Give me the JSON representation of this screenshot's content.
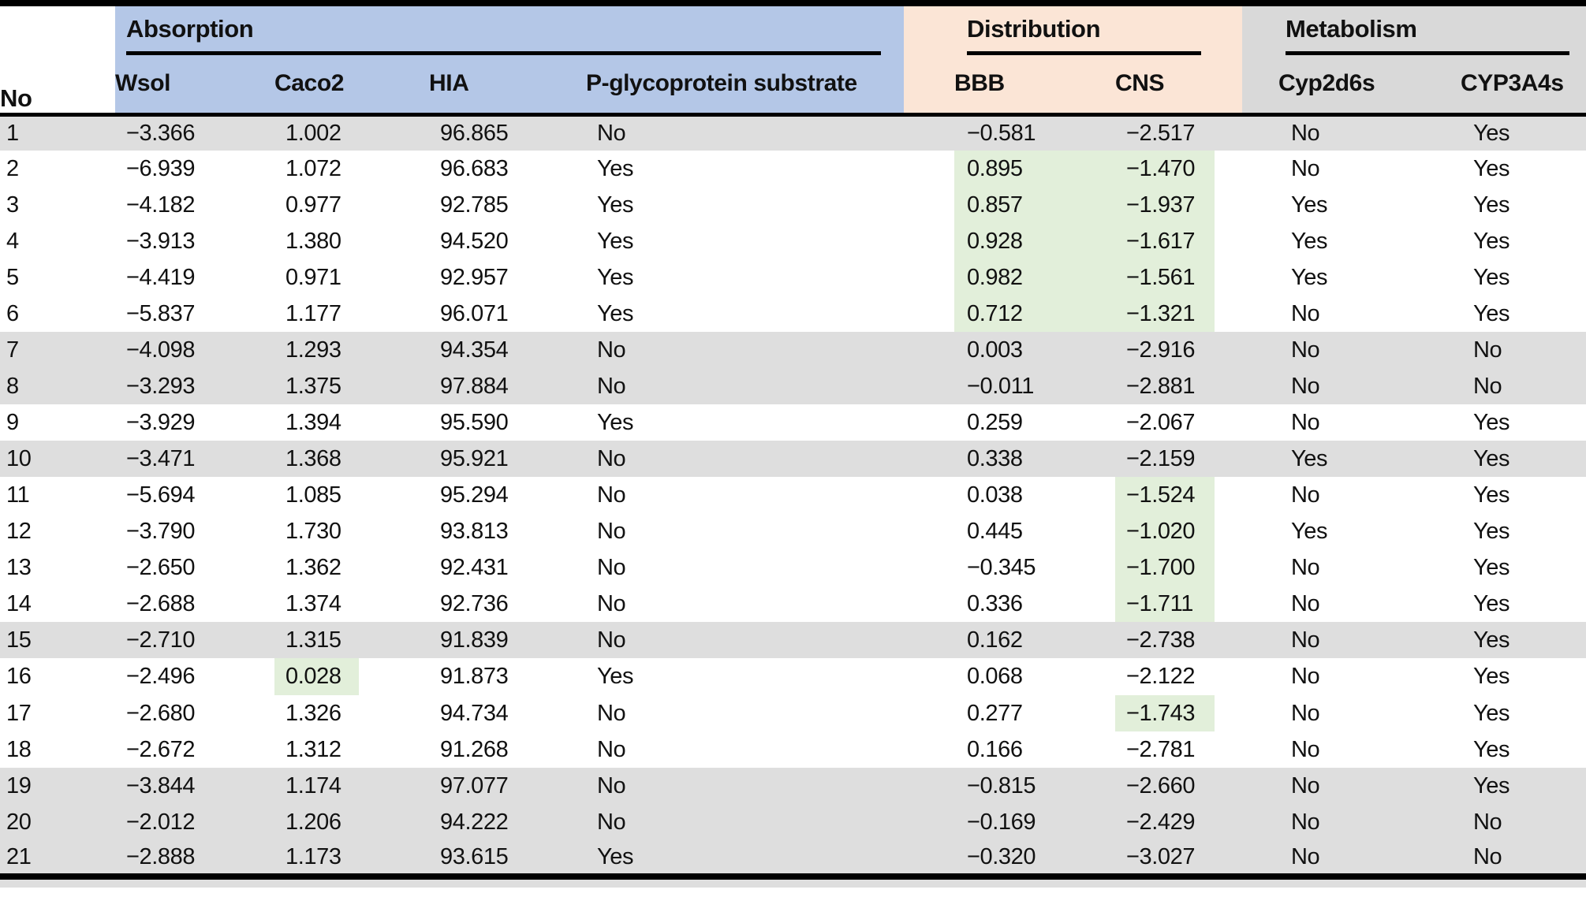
{
  "colors": {
    "absorption_bg": "#b4c7e7",
    "distribution_bg": "#fbe5d6",
    "metabolism_bg": "#d9d9d9",
    "row_shade": "#dedede",
    "highlight": "#e2efda"
  },
  "table": {
    "group_headers": [
      {
        "label": "Absorption"
      },
      {
        "label": "Distribution"
      },
      {
        "label": "Metabolism"
      }
    ],
    "column_headers": {
      "no": "No",
      "wsol": "Wsol",
      "caco2": "Caco2",
      "hia": "HIA",
      "pgp": "P-glycoprotein substrate",
      "bbb": "BBB",
      "cns": "CNS",
      "cyp2d6s": "Cyp2d6s",
      "cyp3a4s": "CYP3A4s"
    },
    "rows": [
      {
        "no": "1",
        "wsol": "−3.366",
        "caco2": "1.002",
        "hia": "96.865",
        "pgp": "No",
        "bbb": "−0.581",
        "cns": "−2.517",
        "cyp2d6s": "No",
        "cyp3a4s": "Yes",
        "shaded": true,
        "highlighted": []
      },
      {
        "no": "2",
        "wsol": "−6.939",
        "caco2": "1.072",
        "hia": "96.683",
        "pgp": "Yes",
        "bbb": "0.895",
        "cns": "−1.470",
        "cyp2d6s": "No",
        "cyp3a4s": "Yes",
        "shaded": false,
        "highlighted": [
          "bbb",
          "cns"
        ]
      },
      {
        "no": "3",
        "wsol": "−4.182",
        "caco2": "0.977",
        "hia": "92.785",
        "pgp": "Yes",
        "bbb": "0.857",
        "cns": "−1.937",
        "cyp2d6s": "Yes",
        "cyp3a4s": "Yes",
        "shaded": false,
        "highlighted": [
          "bbb",
          "cns"
        ]
      },
      {
        "no": "4",
        "wsol": "−3.913",
        "caco2": "1.380",
        "hia": "94.520",
        "pgp": "Yes",
        "bbb": "0.928",
        "cns": "−1.617",
        "cyp2d6s": "Yes",
        "cyp3a4s": "Yes",
        "shaded": false,
        "highlighted": [
          "bbb",
          "cns"
        ]
      },
      {
        "no": "5",
        "wsol": "−4.419",
        "caco2": "0.971",
        "hia": "92.957",
        "pgp": "Yes",
        "bbb": "0.982",
        "cns": "−1.561",
        "cyp2d6s": "Yes",
        "cyp3a4s": "Yes",
        "shaded": false,
        "highlighted": [
          "bbb",
          "cns"
        ]
      },
      {
        "no": "6",
        "wsol": "−5.837",
        "caco2": "1.177",
        "hia": "96.071",
        "pgp": "Yes",
        "bbb": "0.712",
        "cns": "−1.321",
        "cyp2d6s": "No",
        "cyp3a4s": "Yes",
        "shaded": false,
        "highlighted": [
          "bbb",
          "cns"
        ]
      },
      {
        "no": "7",
        "wsol": "−4.098",
        "caco2": "1.293",
        "hia": "94.354",
        "pgp": "No",
        "bbb": "0.003",
        "cns": "−2.916",
        "cyp2d6s": "No",
        "cyp3a4s": "No",
        "shaded": true,
        "highlighted": []
      },
      {
        "no": "8",
        "wsol": "−3.293",
        "caco2": "1.375",
        "hia": "97.884",
        "pgp": "No",
        "bbb": "−0.011",
        "cns": "−2.881",
        "cyp2d6s": "No",
        "cyp3a4s": "No",
        "shaded": true,
        "highlighted": []
      },
      {
        "no": "9",
        "wsol": "−3.929",
        "caco2": "1.394",
        "hia": "95.590",
        "pgp": "Yes",
        "bbb": "0.259",
        "cns": "−2.067",
        "cyp2d6s": "No",
        "cyp3a4s": "Yes",
        "shaded": false,
        "highlighted": []
      },
      {
        "no": "10",
        "wsol": "−3.471",
        "caco2": "1.368",
        "hia": "95.921",
        "pgp": "No",
        "bbb": "0.338",
        "cns": "−2.159",
        "cyp2d6s": "Yes",
        "cyp3a4s": "Yes",
        "shaded": true,
        "highlighted": []
      },
      {
        "no": "11",
        "wsol": "−5.694",
        "caco2": "1.085",
        "hia": "95.294",
        "pgp": "No",
        "bbb": "0.038",
        "cns": "−1.524",
        "cyp2d6s": "No",
        "cyp3a4s": "Yes",
        "shaded": false,
        "highlighted": [
          "cns"
        ]
      },
      {
        "no": "12",
        "wsol": "−3.790",
        "caco2": "1.730",
        "hia": "93.813",
        "pgp": "No",
        "bbb": "0.445",
        "cns": "−1.020",
        "cyp2d6s": "Yes",
        "cyp3a4s": "Yes",
        "shaded": false,
        "highlighted": [
          "cns"
        ]
      },
      {
        "no": "13",
        "wsol": "−2.650",
        "caco2": "1.362",
        "hia": "92.431",
        "pgp": "No",
        "bbb": "−0.345",
        "cns": "−1.700",
        "cyp2d6s": "No",
        "cyp3a4s": "Yes",
        "shaded": false,
        "highlighted": [
          "cns"
        ]
      },
      {
        "no": "14",
        "wsol": "−2.688",
        "caco2": "1.374",
        "hia": "92.736",
        "pgp": "No",
        "bbb": "0.336",
        "cns": "−1.711",
        "cyp2d6s": "No",
        "cyp3a4s": "Yes",
        "shaded": false,
        "highlighted": [
          "cns"
        ]
      },
      {
        "no": "15",
        "wsol": "−2.710",
        "caco2": "1.315",
        "hia": "91.839",
        "pgp": "No",
        "bbb": "0.162",
        "cns": "−2.738",
        "cyp2d6s": "No",
        "cyp3a4s": "Yes",
        "shaded": true,
        "highlighted": []
      },
      {
        "no": "16",
        "wsol": "−2.496",
        "caco2": "0.028",
        "hia": "91.873",
        "pgp": "Yes",
        "bbb": "0.068",
        "cns": "−2.122",
        "cyp2d6s": "No",
        "cyp3a4s": "Yes",
        "shaded": false,
        "highlighted": [
          "caco2"
        ]
      },
      {
        "no": "17",
        "wsol": "−2.680",
        "caco2": "1.326",
        "hia": "94.734",
        "pgp": "No",
        "bbb": "0.277",
        "cns": "−1.743",
        "cyp2d6s": "No",
        "cyp3a4s": "Yes",
        "shaded": false,
        "highlighted": [
          "cns"
        ]
      },
      {
        "no": "18",
        "wsol": "−2.672",
        "caco2": "1.312",
        "hia": "91.268",
        "pgp": "No",
        "bbb": "0.166",
        "cns": "−2.781",
        "cyp2d6s": "No",
        "cyp3a4s": "Yes",
        "shaded": false,
        "highlighted": []
      },
      {
        "no": "19",
        "wsol": "−3.844",
        "caco2": "1.174",
        "hia": "97.077",
        "pgp": "No",
        "bbb": "−0.815",
        "cns": "−2.660",
        "cyp2d6s": "No",
        "cyp3a4s": "Yes",
        "shaded": true,
        "highlighted": []
      },
      {
        "no": "20",
        "wsol": "−2.012",
        "caco2": "1.206",
        "hia": "94.222",
        "pgp": "No",
        "bbb": "−0.169",
        "cns": "−2.429",
        "cyp2d6s": "No",
        "cyp3a4s": "No",
        "shaded": true,
        "highlighted": []
      },
      {
        "no": "21",
        "wsol": "−2.888",
        "caco2": "1.173",
        "hia": "93.615",
        "pgp": "Yes",
        "bbb": "−0.320",
        "cns": "−3.027",
        "cyp2d6s": "No",
        "cyp3a4s": "No",
        "shaded": true,
        "highlighted": []
      }
    ]
  }
}
